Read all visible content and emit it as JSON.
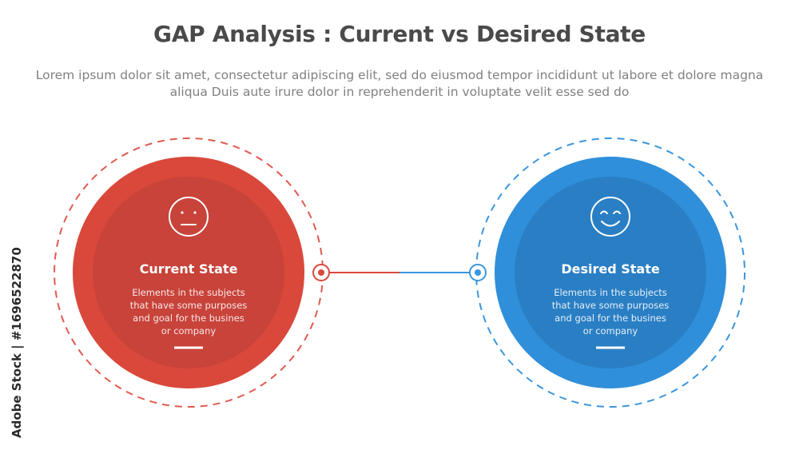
{
  "header": {
    "title": "GAP Analysis : Current vs Desired State",
    "description": "Lorem ipsum dolor sit amet, consectetur adipiscing elit, sed do eiusmod tempor incididunt ut labore et dolore magna aliqua Duis aute irure dolor in reprehenderit in voluptate velit esse sed do"
  },
  "states": [
    {
      "title": "Current State",
      "body": "Elements in the subjects\nthat have some purposes\nand goal for the  busines\nor company",
      "icon": "neutral-face-icon",
      "color_outer": "#d9483b",
      "color_inner": "#c8433a",
      "color_dashed": "#e05a4f"
    },
    {
      "title": "Desired State",
      "body": "Elements in the subjects\nthat have some purposes\nand goal for the  busines\nor company",
      "icon": "smiling-face-icon",
      "color_outer": "#2f8fda",
      "color_inner": "#2a7fc4",
      "color_dashed": "#3a96dd"
    }
  ],
  "watermark": "Adobe Stock | #1696522870"
}
